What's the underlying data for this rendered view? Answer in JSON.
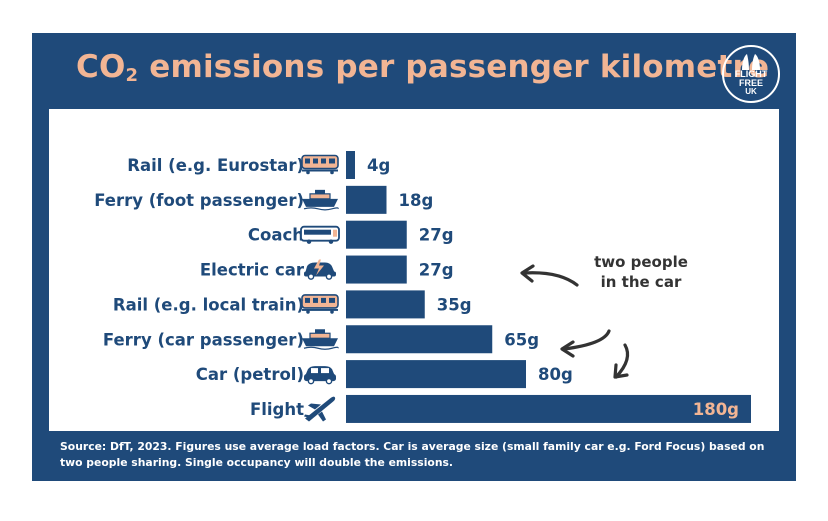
{
  "header": {
    "title_prefix": "CO",
    "title_sub": "2",
    "title_rest": " emissions per passenger kilometre",
    "logo_line1": "FLIGHT",
    "logo_line2": "FREE",
    "logo_line3": "UK"
  },
  "annotation": {
    "line1": "two people",
    "line2": "in the car"
  },
  "source": "Source: DfT, 2023. Figures use average load factors. Car is average size (small family car e.g. Ford Focus) based on two people sharing. Single occupancy will double the emissions.",
  "colors": {
    "background": "#1f4a7a",
    "bar": "#1f4a7a",
    "accent": "#f2b594",
    "panel": "#ffffff"
  },
  "chart_data": {
    "type": "bar",
    "orientation": "horizontal",
    "unit": "g",
    "categories": [
      "Rail (e.g. Eurostar)",
      "Ferry (foot passenger)",
      "Coach",
      "Electric car",
      "Rail (e.g. local train)",
      "Ferry (car passenger)",
      "Car (petrol)",
      "Flight"
    ],
    "values": [
      4,
      18,
      27,
      27,
      35,
      65,
      80,
      180
    ],
    "value_labels": [
      "4g",
      "18g",
      "27g",
      "27g",
      "35g",
      "65g",
      "80g",
      "180g"
    ],
    "icons": [
      "train-icon",
      "ferry-icon",
      "bus-icon",
      "electric-car-icon",
      "train-icon",
      "ferry-icon",
      "car-icon",
      "plane-icon"
    ],
    "xlim": [
      0,
      180
    ],
    "grid": false,
    "legend": "none"
  }
}
